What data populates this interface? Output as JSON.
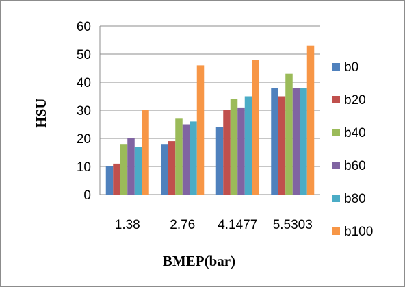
{
  "chart_data": {
    "type": "bar",
    "title": "",
    "xlabel": "BMEP(bar)",
    "ylabel": "HSU",
    "categories": [
      "1.38",
      "2.76",
      "4.1477",
      "5.5303"
    ],
    "ylim": [
      0,
      60
    ],
    "yticks": [
      0,
      10,
      20,
      30,
      40,
      50,
      60
    ],
    "grid": true,
    "legend": "right",
    "series": [
      {
        "name": "b0",
        "color": "#4F81BD",
        "values": [
          10,
          18,
          24,
          38
        ]
      },
      {
        "name": "b20",
        "color": "#C0504D",
        "values": [
          11,
          19,
          30,
          35
        ]
      },
      {
        "name": "b40",
        "color": "#9BBB59",
        "values": [
          18,
          27,
          34,
          43
        ]
      },
      {
        "name": "b60",
        "color": "#8064A2",
        "values": [
          20,
          25,
          31,
          38
        ]
      },
      {
        "name": "b80",
        "color": "#4BACC6",
        "values": [
          17,
          26,
          35,
          38
        ]
      },
      {
        "name": "b100",
        "color": "#F79646",
        "values": [
          30,
          46,
          48,
          53
        ]
      }
    ]
  }
}
